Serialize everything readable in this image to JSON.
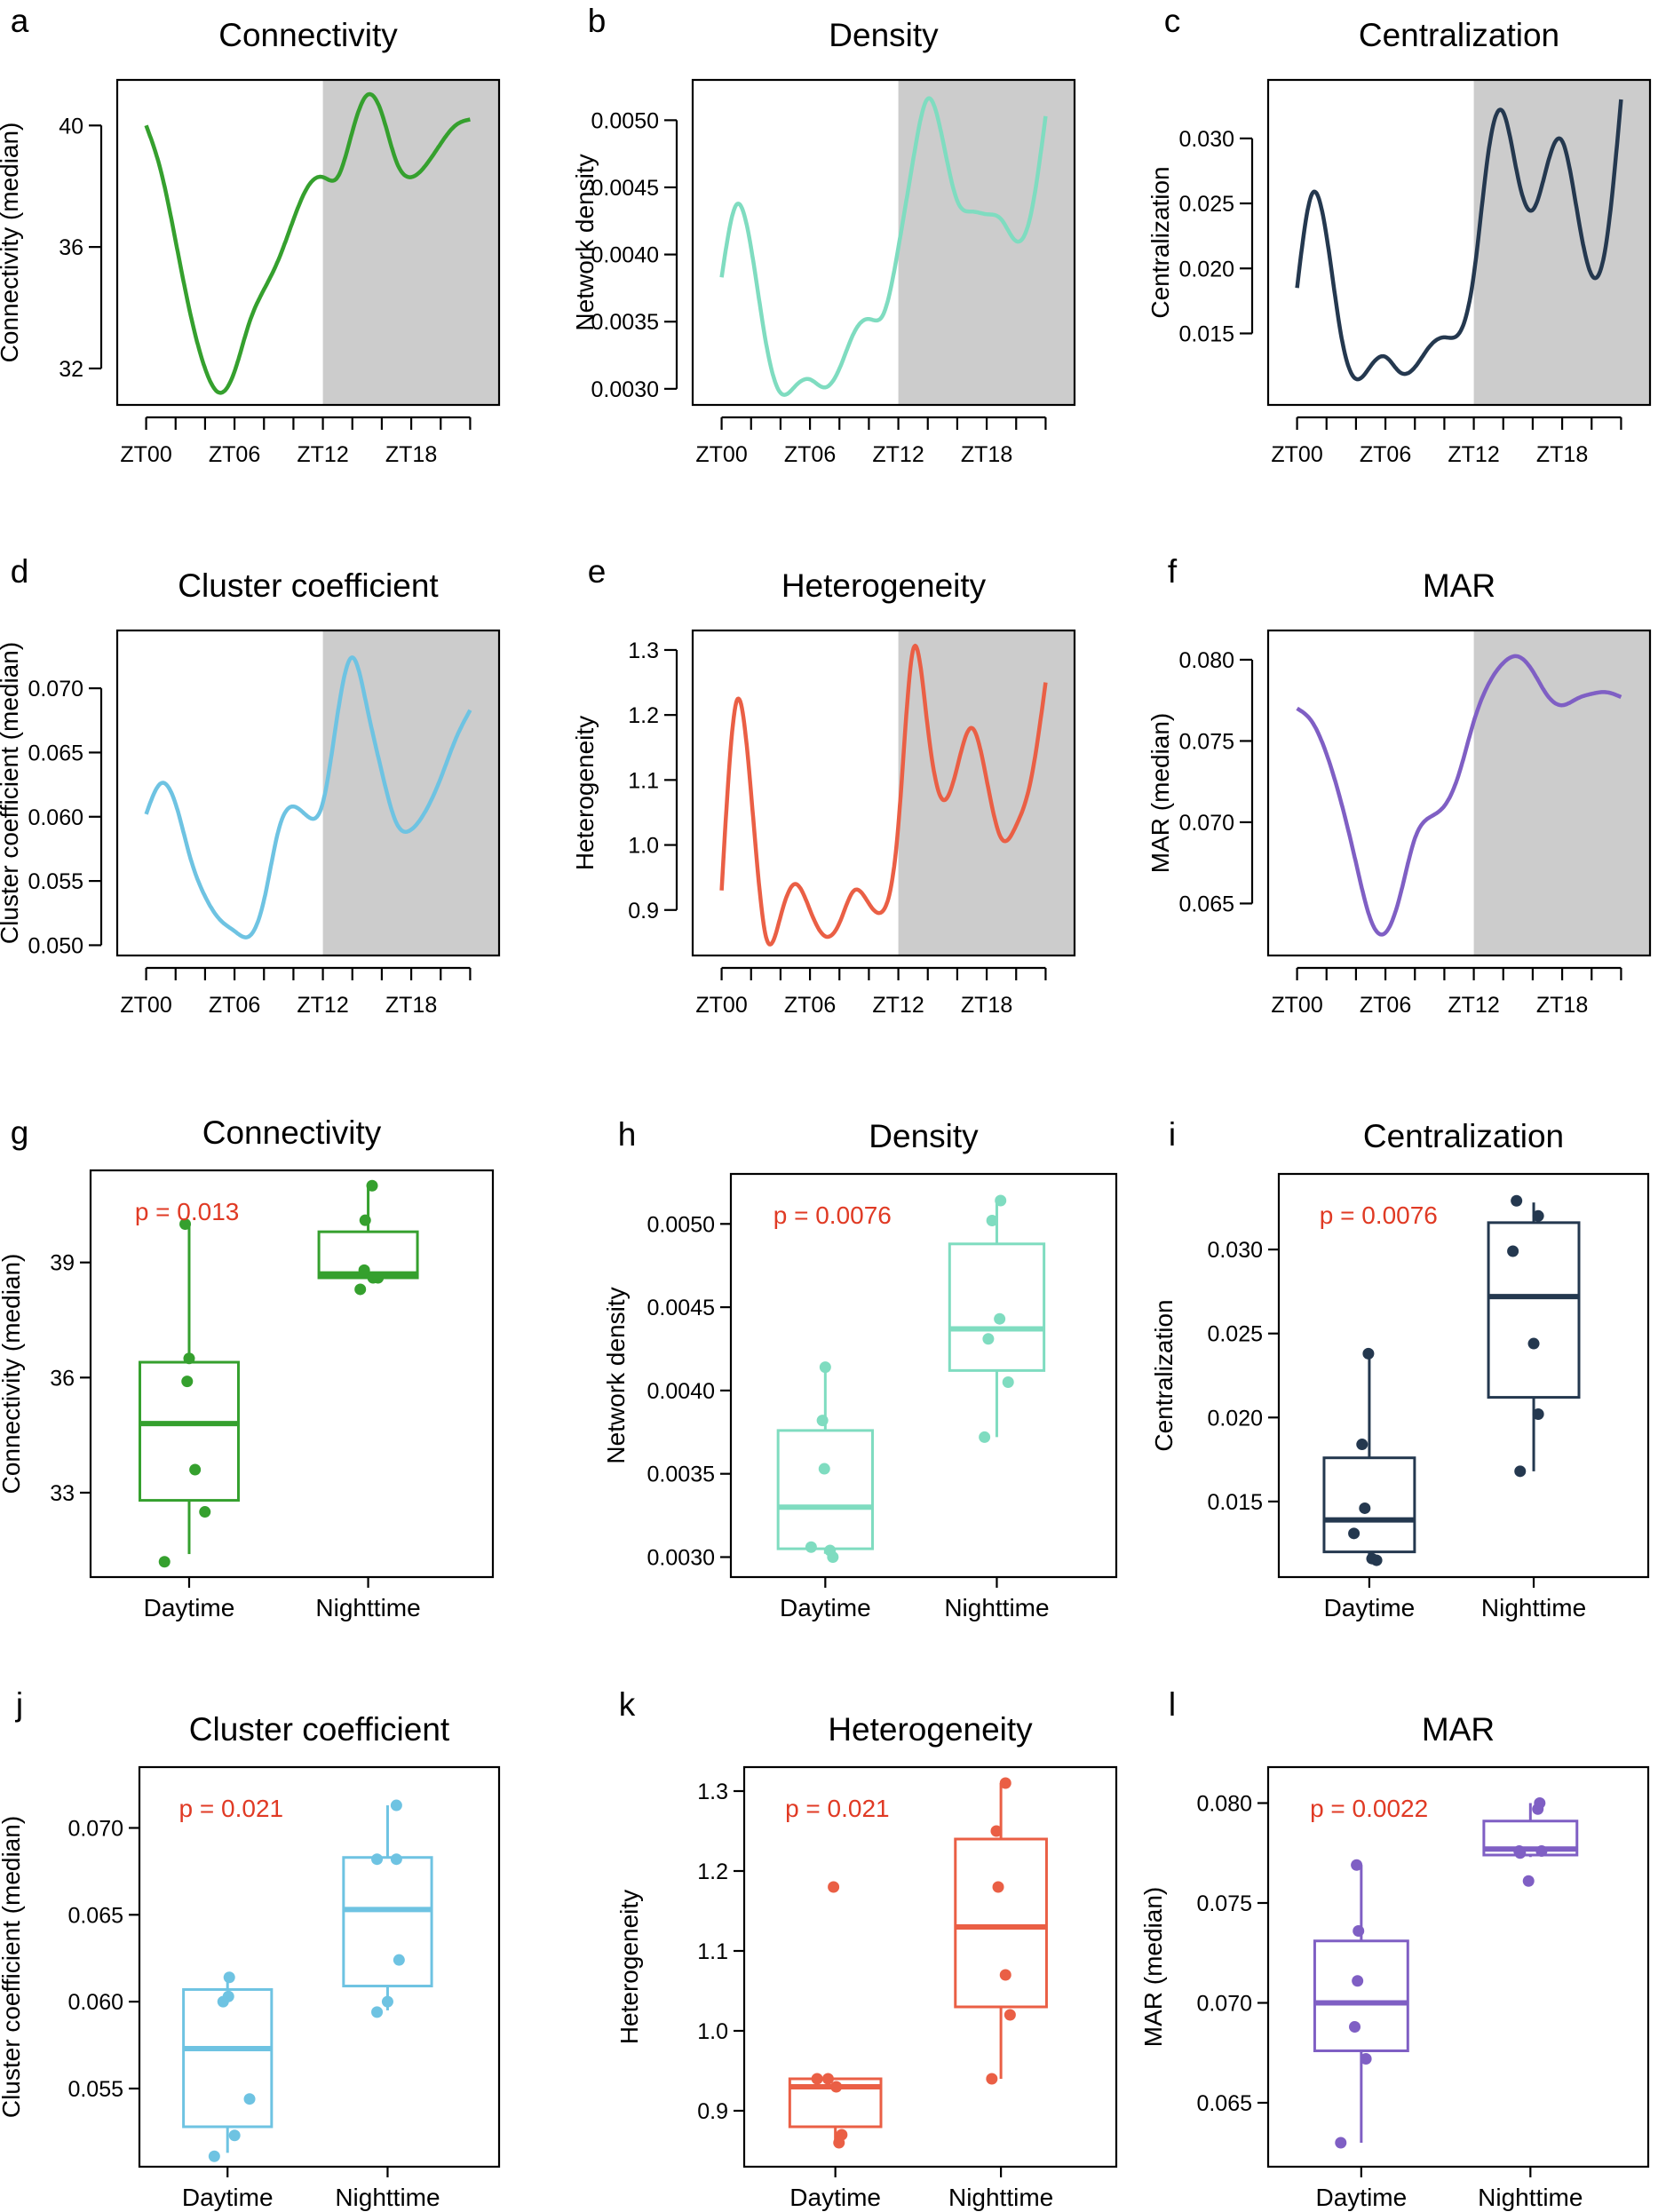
{
  "figure": {
    "line_x_ticks": [
      "ZT00",
      "ZT06",
      "ZT12",
      "ZT18"
    ],
    "box_categories": [
      "Daytime",
      "Nighttime"
    ]
  },
  "chart_data": [
    {
      "panel": "a",
      "type": "line",
      "title": "Connectivity",
      "ylabel": "Connectivity (median)",
      "color": "#35a02e",
      "ylim": [
        30.8,
        41.5
      ],
      "yticks": [
        32,
        36,
        40
      ],
      "ytick_labels": [
        "32",
        "36",
        "40"
      ],
      "xlim": [
        -1,
        23
      ],
      "shaded_from": 12,
      "shaded_to": 23,
      "xtick_positions": [
        0,
        6,
        12,
        18
      ],
      "x": [
        0,
        1,
        2,
        3,
        4,
        5,
        6,
        7,
        8,
        9,
        10,
        11,
        12,
        13,
        14,
        15,
        16,
        17,
        18,
        19,
        20,
        21,
        22
      ],
      "y": [
        40.0,
        38.5,
        36.2,
        33.8,
        32.0,
        31.2,
        31.9,
        33.5,
        34.6,
        35.6,
        36.9,
        38.0,
        38.3,
        38.3,
        39.8,
        41.0,
        40.4,
        38.8,
        38.3,
        38.7,
        39.4,
        40.0,
        40.2
      ]
    },
    {
      "panel": "b",
      "type": "line",
      "title": "Density",
      "ylabel": "Network density",
      "color": "#7fdcc0",
      "ylim": [
        0.00288,
        0.0053
      ],
      "yticks": [
        0.003,
        0.0035,
        0.004,
        0.0045,
        0.005
      ],
      "ytick_labels": [
        "0.0030",
        "0.0035",
        "0.0040",
        "0.0045",
        "0.0050"
      ],
      "xlim": [
        -1,
        23
      ],
      "shaded_from": 12,
      "shaded_to": 23,
      "xtick_positions": [
        0,
        6,
        12,
        18
      ],
      "x": [
        0,
        1,
        2,
        3,
        4,
        5,
        6,
        7,
        8,
        9,
        10,
        11,
        12,
        13,
        14,
        15,
        16,
        17,
        18,
        19,
        20,
        21,
        22
      ],
      "y": [
        0.00383,
        0.00437,
        0.00405,
        0.00335,
        0.00297,
        0.00302,
        0.00307,
        0.00301,
        0.00315,
        0.00342,
        0.00352,
        0.00356,
        0.00405,
        0.0047,
        0.00516,
        0.00486,
        0.0044,
        0.00432,
        0.0043,
        0.00426,
        0.0041,
        0.0043,
        0.00503
      ]
    },
    {
      "panel": "c",
      "type": "line",
      "title": "Centralization",
      "ylabel": "Centralization",
      "color": "#24384f",
      "ylim": [
        0.0095,
        0.0345
      ],
      "yticks": [
        0.015,
        0.02,
        0.025,
        0.03
      ],
      "ytick_labels": [
        "0.015",
        "0.020",
        "0.025",
        "0.030"
      ],
      "xlim": [
        -1,
        23
      ],
      "shaded_from": 12,
      "shaded_to": 23,
      "xtick_positions": [
        0,
        6,
        12,
        18
      ],
      "x": [
        0,
        1,
        2,
        3,
        4,
        5,
        6,
        7,
        8,
        9,
        10,
        11,
        12,
        13,
        14,
        15,
        16,
        17,
        18,
        19,
        20,
        21,
        22
      ],
      "y": [
        0.0185,
        0.0257,
        0.0225,
        0.0148,
        0.0115,
        0.0125,
        0.0132,
        0.012,
        0.0124,
        0.014,
        0.0147,
        0.015,
        0.0195,
        0.029,
        0.032,
        0.027,
        0.0245,
        0.028,
        0.0298,
        0.0245,
        0.0195,
        0.022,
        0.033
      ]
    },
    {
      "panel": "d",
      "type": "line",
      "title": "Cluster coefficient",
      "ylabel": "Cluster coefficient (median)",
      "color": "#6ec3e2",
      "ylim": [
        0.0492,
        0.0745
      ],
      "yticks": [
        0.05,
        0.055,
        0.06,
        0.065,
        0.07
      ],
      "ytick_labels": [
        "0.050",
        "0.055",
        "0.060",
        "0.065",
        "0.070"
      ],
      "xlim": [
        -1,
        23
      ],
      "shaded_from": 12,
      "shaded_to": 23,
      "xtick_positions": [
        0,
        6,
        12,
        18
      ],
      "x": [
        0,
        1,
        2,
        3,
        4,
        5,
        6,
        7,
        8,
        9,
        10,
        11,
        12,
        13,
        14,
        15,
        16,
        17,
        18,
        19,
        20,
        21,
        22
      ],
      "y": [
        0.0602,
        0.0626,
        0.061,
        0.0568,
        0.0538,
        0.052,
        0.0511,
        0.0507,
        0.0535,
        0.059,
        0.0608,
        0.06,
        0.0611,
        0.068,
        0.0724,
        0.0685,
        0.0635,
        0.0595,
        0.059,
        0.0605,
        0.063,
        0.066,
        0.0683
      ]
    },
    {
      "panel": "e",
      "type": "line",
      "title": "Heterogeneity",
      "ylabel": "Heterogeneity",
      "color": "#ea5f45",
      "ylim": [
        0.83,
        1.33
      ],
      "yticks": [
        0.9,
        1.0,
        1.1,
        1.2,
        1.3
      ],
      "ytick_labels": [
        "0.9",
        "1.0",
        "1.1",
        "1.2",
        "1.3"
      ],
      "xlim": [
        -1,
        23
      ],
      "shaded_from": 12,
      "shaded_to": 23,
      "xtick_positions": [
        0,
        6,
        12,
        18
      ],
      "x": [
        0,
        1,
        2,
        3,
        4,
        5,
        6,
        7,
        8,
        9,
        10,
        11,
        12,
        13,
        14,
        15,
        16,
        17,
        18,
        19,
        20,
        21,
        22
      ],
      "y": [
        0.93,
        1.22,
        1.08,
        0.86,
        0.89,
        0.94,
        0.9,
        0.86,
        0.88,
        0.93,
        0.91,
        0.9,
        1.03,
        1.3,
        1.18,
        1.07,
        1.12,
        1.18,
        1.1,
        1.01,
        1.03,
        1.1,
        1.25
      ]
    },
    {
      "panel": "f",
      "type": "line",
      "title": "MAR",
      "ylabel": "MAR (median)",
      "color": "#7f5fc4",
      "ylim": [
        0.0618,
        0.0818
      ],
      "yticks": [
        0.065,
        0.07,
        0.075,
        0.08
      ],
      "ytick_labels": [
        "0.065",
        "0.070",
        "0.075",
        "0.080"
      ],
      "xlim": [
        -1,
        23
      ],
      "shaded_from": 12,
      "shaded_to": 23,
      "xtick_positions": [
        0,
        6,
        12,
        18
      ],
      "x": [
        0,
        1,
        2,
        3,
        4,
        5,
        6,
        7,
        8,
        9,
        10,
        11,
        12,
        13,
        14,
        15,
        16,
        17,
        18,
        19,
        20,
        21,
        22
      ],
      "y": [
        0.077,
        0.0762,
        0.0742,
        0.0712,
        0.0675,
        0.064,
        0.0632,
        0.0655,
        0.069,
        0.0703,
        0.071,
        0.073,
        0.0762,
        0.0785,
        0.0798,
        0.0802,
        0.0793,
        0.0778,
        0.0772,
        0.0776,
        0.0779,
        0.078,
        0.0777
      ]
    },
    {
      "panel": "g",
      "type": "box",
      "title": "Connectivity",
      "ylabel": "Connectivity (median)",
      "color": "#35a02e",
      "fill": "none",
      "pvalue": "p = 0.013",
      "ylim": [
        30.8,
        41.4
      ],
      "yticks": [
        33,
        36,
        39
      ],
      "ytick_labels": [
        "33",
        "36",
        "39"
      ],
      "categories": [
        "Daytime",
        "Nighttime"
      ],
      "boxes": [
        {
          "whisker_low": 31.4,
          "q1": 32.8,
          "median": 34.8,
          "q3": 36.4,
          "whisker_high": 40.0,
          "points": [
            [
              -0.04,
              40.0
            ],
            [
              0.0,
              36.5
            ],
            [
              -0.02,
              35.9
            ],
            [
              0.06,
              33.6
            ],
            [
              0.16,
              32.5
            ],
            [
              -0.25,
              31.2
            ]
          ]
        },
        {
          "whisker_low": 38.6,
          "q1": 38.6,
          "median": 38.7,
          "q3": 39.8,
          "whisker_high": 41.0,
          "points": [
            [
              0.04,
              41.0
            ],
            [
              -0.03,
              40.1
            ],
            [
              -0.04,
              38.8
            ],
            [
              0.05,
              38.6
            ],
            [
              0.1,
              38.6
            ],
            [
              -0.08,
              38.3
            ]
          ]
        }
      ]
    },
    {
      "panel": "h",
      "type": "box",
      "title": "Density",
      "ylabel": "Network density",
      "color": "#7fdcc0",
      "fill": "none",
      "pvalue": "p = 0.0076",
      "ylim": [
        0.00288,
        0.0053
      ],
      "yticks": [
        0.003,
        0.0035,
        0.004,
        0.0045,
        0.005
      ],
      "ytick_labels": [
        "0.0030",
        "0.0035",
        "0.0040",
        "0.0045",
        "0.0050"
      ],
      "categories": [
        "Daytime",
        "Nighttime"
      ],
      "boxes": [
        {
          "whisker_low": 0.00302,
          "q1": 0.00305,
          "median": 0.0033,
          "q3": 0.00376,
          "whisker_high": 0.00414,
          "points": [
            [
              0.0,
              0.00414
            ],
            [
              -0.03,
              0.00382
            ],
            [
              -0.01,
              0.00353
            ],
            [
              -0.15,
              0.00306
            ],
            [
              0.05,
              0.00304
            ],
            [
              0.08,
              0.003
            ]
          ]
        },
        {
          "whisker_low": 0.00372,
          "q1": 0.00412,
          "median": 0.00437,
          "q3": 0.00488,
          "whisker_high": 0.00514,
          "points": [
            [
              0.04,
              0.00514
            ],
            [
              -0.05,
              0.00502
            ],
            [
              0.03,
              0.00443
            ],
            [
              -0.09,
              0.00431
            ],
            [
              0.12,
              0.00405
            ],
            [
              -0.13,
              0.00372
            ]
          ]
        }
      ]
    },
    {
      "panel": "i",
      "type": "box",
      "title": "Centralization",
      "ylabel": "Centralization",
      "color": "#24384f",
      "fill": "none",
      "pvalue": "p = 0.0076",
      "ylim": [
        0.0105,
        0.0345
      ],
      "yticks": [
        0.015,
        0.02,
        0.025,
        0.03
      ],
      "ytick_labels": [
        "0.015",
        "0.020",
        "0.025",
        "0.030"
      ],
      "categories": [
        "Daytime",
        "Nighttime"
      ],
      "boxes": [
        {
          "whisker_low": 0.0115,
          "q1": 0.012,
          "median": 0.0139,
          "q3": 0.0176,
          "whisker_high": 0.0238,
          "points": [
            [
              -0.01,
              0.0238
            ],
            [
              -0.08,
              0.0184
            ],
            [
              -0.05,
              0.0146
            ],
            [
              -0.17,
              0.0131
            ],
            [
              0.03,
              0.0116
            ],
            [
              0.08,
              0.0115
            ]
          ]
        },
        {
          "whisker_low": 0.0168,
          "q1": 0.0212,
          "median": 0.0272,
          "q3": 0.0316,
          "whisker_high": 0.0328,
          "points": [
            [
              -0.19,
              0.0329
            ],
            [
              0.05,
              0.032
            ],
            [
              -0.23,
              0.0299
            ],
            [
              0.0,
              0.0244
            ],
            [
              0.05,
              0.0202
            ],
            [
              -0.15,
              0.0168
            ]
          ]
        }
      ]
    },
    {
      "panel": "j",
      "type": "box",
      "title": "Cluster coefficient",
      "ylabel": "Cluster coefficient (median)",
      "color": "#6ec3e2",
      "fill": "none",
      "pvalue": "p = 0.021",
      "ylim": [
        0.0505,
        0.0735
      ],
      "yticks": [
        0.055,
        0.06,
        0.065,
        0.07
      ],
      "ytick_labels": [
        "0.055",
        "0.060",
        "0.065",
        "0.070"
      ],
      "categories": [
        "Daytime",
        "Nighttime"
      ],
      "boxes": [
        {
          "whisker_low": 0.0513,
          "q1": 0.0528,
          "median": 0.0573,
          "q3": 0.0607,
          "whisker_high": 0.0613,
          "points": [
            [
              0.02,
              0.0614
            ],
            [
              0.01,
              0.0603
            ],
            [
              0.25,
              0.0544
            ],
            [
              0.08,
              0.0523
            ],
            [
              -0.15,
              0.0511
            ],
            [
              -0.05,
              0.06
            ]
          ]
        },
        {
          "whisker_low": 0.0595,
          "q1": 0.0609,
          "median": 0.0653,
          "q3": 0.0683,
          "whisker_high": 0.0713,
          "points": [
            [
              0.1,
              0.0713
            ],
            [
              -0.12,
              0.0682
            ],
            [
              0.1,
              0.0682
            ],
            [
              0.13,
              0.0624
            ],
            [
              -0.12,
              0.0594
            ],
            [
              0.0,
              0.06
            ]
          ]
        }
      ]
    },
    {
      "panel": "k",
      "type": "box",
      "title": "Heterogeneity",
      "ylabel": "Heterogeneity",
      "color": "#ea5f45",
      "fill": "none",
      "pvalue": "p = 0.021",
      "ylim": [
        0.83,
        1.33
      ],
      "yticks": [
        0.9,
        1.0,
        1.1,
        1.2,
        1.3
      ],
      "ytick_labels": [
        "0.9",
        "1.0",
        "1.1",
        "1.2",
        "1.3"
      ],
      "categories": [
        "Daytime",
        "Nighttime"
      ],
      "boxes": [
        {
          "whisker_low": 0.86,
          "q1": 0.88,
          "median": 0.93,
          "q3": 0.94,
          "whisker_high": 0.94,
          "points": [
            [
              -0.02,
              1.18
            ],
            [
              -0.08,
              0.94
            ],
            [
              0.01,
              0.93
            ],
            [
              0.07,
              0.87
            ],
            [
              0.04,
              0.86
            ],
            [
              -0.2,
              0.94
            ]
          ]
        },
        {
          "whisker_low": 0.94,
          "q1": 1.03,
          "median": 1.13,
          "q3": 1.24,
          "whisker_high": 1.31,
          "points": [
            [
              0.05,
              1.31
            ],
            [
              -0.05,
              1.25
            ],
            [
              -0.03,
              1.18
            ],
            [
              0.05,
              1.07
            ],
            [
              0.1,
              1.02
            ],
            [
              -0.1,
              0.94
            ]
          ]
        }
      ]
    },
    {
      "panel": "l",
      "type": "box",
      "title": "MAR",
      "ylabel": "MAR (median)",
      "color": "#7f5fc4",
      "fill": "none",
      "pvalue": "p = 0.0022",
      "ylim": [
        0.0618,
        0.0818
      ],
      "yticks": [
        0.065,
        0.07,
        0.075,
        0.08
      ],
      "ytick_labels": [
        "0.065",
        "0.070",
        "0.075",
        "0.080"
      ],
      "categories": [
        "Daytime",
        "Nighttime"
      ],
      "boxes": [
        {
          "whisker_low": 0.063,
          "q1": 0.0676,
          "median": 0.07,
          "q3": 0.0731,
          "whisker_high": 0.0769,
          "points": [
            [
              -0.05,
              0.0769
            ],
            [
              -0.03,
              0.0736
            ],
            [
              -0.04,
              0.0711
            ],
            [
              -0.07,
              0.0688
            ],
            [
              0.05,
              0.0672
            ],
            [
              -0.22,
              0.063
            ]
          ]
        },
        {
          "whisker_low": 0.0773,
          "q1": 0.0774,
          "median": 0.0777,
          "q3": 0.0791,
          "whisker_high": 0.08,
          "points": [
            [
              0.1,
              0.08
            ],
            [
              0.08,
              0.0797
            ],
            [
              -0.12,
              0.0776
            ],
            [
              0.12,
              0.0776
            ],
            [
              -0.11,
              0.0775
            ],
            [
              -0.02,
              0.0761
            ]
          ]
        }
      ]
    }
  ]
}
